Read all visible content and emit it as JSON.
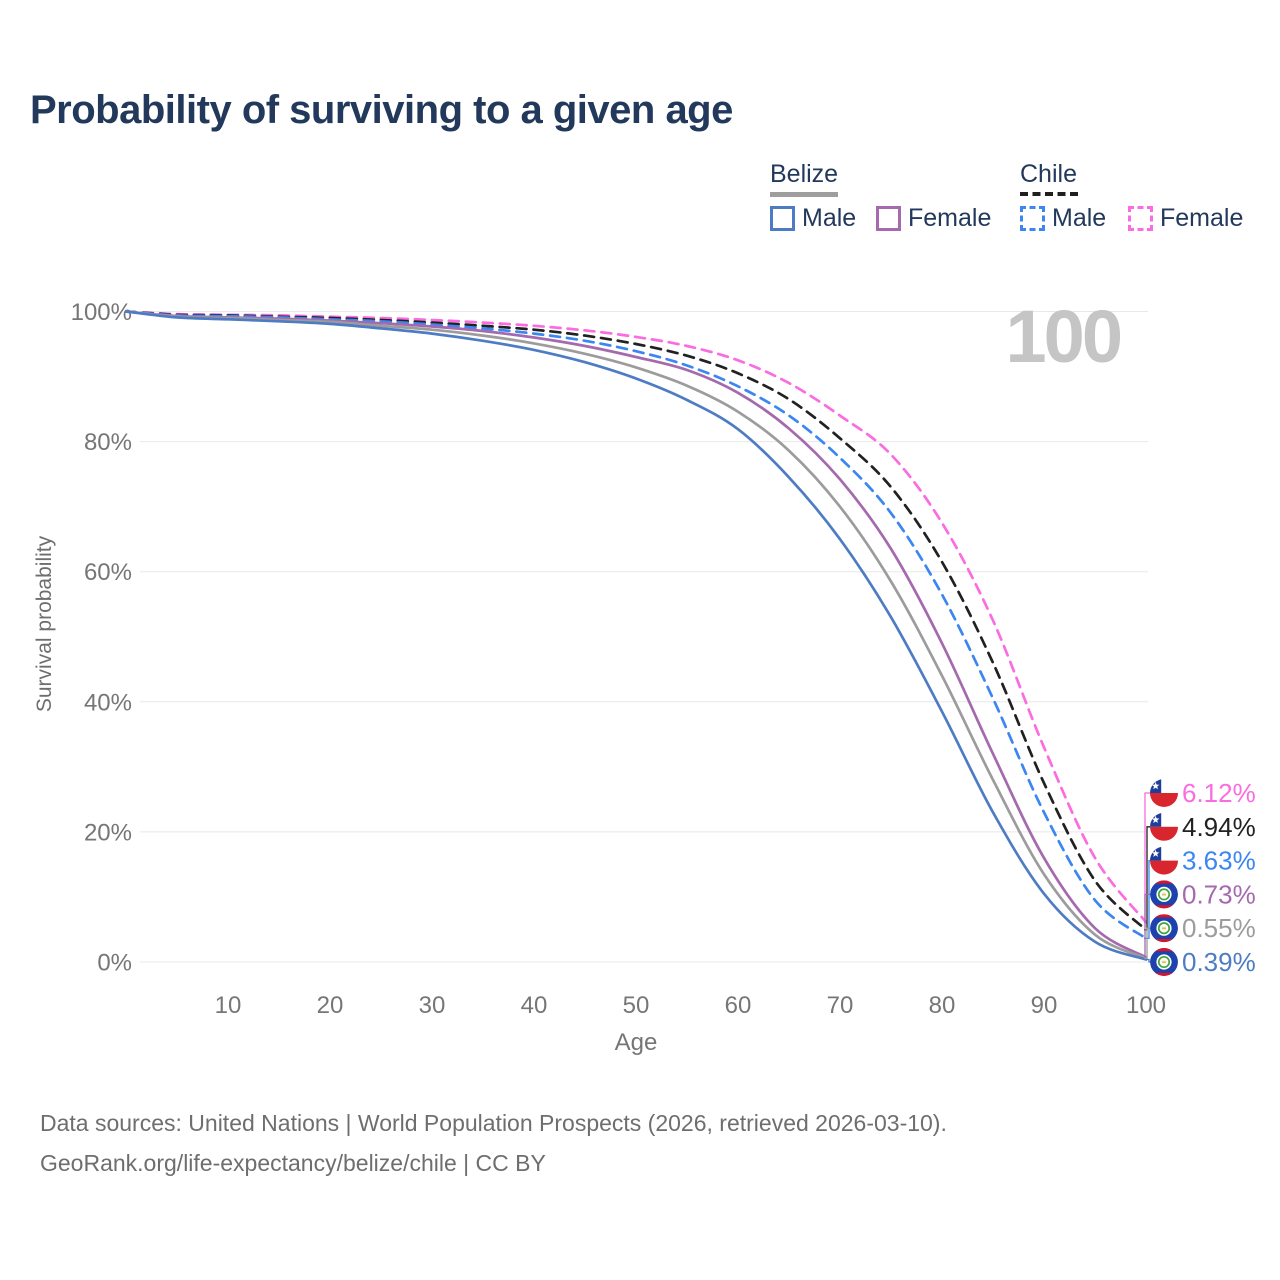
{
  "title": "Probability of surviving to a given age",
  "watermark": "100",
  "colors": {
    "title_text": "#22395c",
    "legend_text": "#22395c",
    "grid": "#e8e8e8",
    "tick_text": "#767676",
    "axis_title_text": "#6e6e6e",
    "watermark_text": "#c5c5c5",
    "footer_text": "#6e6e6e"
  },
  "legend": {
    "groups": [
      {
        "name": "Belize",
        "line_style": "solid",
        "line_color": "#9e9e9e",
        "items": [
          {
            "label": "Male",
            "color": "#4e7cc4",
            "dashed": false
          },
          {
            "label": "Female",
            "color": "#a569ae",
            "dashed": false
          }
        ]
      },
      {
        "name": "Chile",
        "line_style": "dashed",
        "line_color": "#1f1f1f",
        "items": [
          {
            "label": "Male",
            "color": "#3b86f0",
            "dashed": true
          },
          {
            "label": "Female",
            "color": "#fb6ce0",
            "dashed": true
          }
        ]
      }
    ]
  },
  "chart_data": {
    "type": "line",
    "title": "Probability of surviving to a given age",
    "xlabel": "Age",
    "ylabel": "Survival probability",
    "xlim": [
      0,
      100
    ],
    "ylim": [
      0,
      100
    ],
    "grid": "horizontal",
    "legend_position": "top-right",
    "highlight_age": 100,
    "x_ticks": [
      10,
      20,
      30,
      40,
      50,
      60,
      70,
      80,
      90,
      100
    ],
    "y_tick_labels": [
      "0%",
      "20%",
      "40%",
      "60%",
      "80%",
      "100%"
    ],
    "ages": [
      0,
      5,
      10,
      15,
      20,
      25,
      30,
      35,
      40,
      45,
      50,
      55,
      60,
      65,
      70,
      75,
      80,
      85,
      90,
      95,
      100
    ],
    "series": [
      {
        "name": "Chile Female",
        "country": "Chile",
        "sex": "Female",
        "style": "dashed",
        "color": "#fb6ce0",
        "end_label": "6.12%",
        "values": [
          100,
          99.6,
          99.5,
          99.4,
          99.2,
          99.0,
          98.7,
          98.3,
          97.8,
          97.1,
          96.1,
          94.7,
          92.5,
          89.0,
          84.0,
          78.0,
          67.5,
          52.5,
          33.0,
          16.0,
          6.12
        ]
      },
      {
        "name": "Chile Both sexes",
        "country": "Chile",
        "sex": "Both",
        "style": "dashed",
        "color": "#212121",
        "end_label": "4.94%",
        "values": [
          100,
          99.5,
          99.4,
          99.2,
          99.0,
          98.7,
          98.3,
          97.8,
          97.2,
          96.3,
          95.0,
          93.2,
          90.5,
          86.5,
          80.5,
          73.0,
          61.5,
          46.0,
          27.5,
          12.5,
          4.94
        ]
      },
      {
        "name": "Chile Male",
        "country": "Chile",
        "sex": "Male",
        "style": "dashed",
        "color": "#3b86f0",
        "end_label": "3.63%",
        "values": [
          100,
          99.4,
          99.3,
          99.1,
          98.8,
          98.5,
          98.0,
          97.4,
          96.6,
          95.5,
          93.9,
          91.7,
          88.5,
          84.0,
          77.5,
          69.0,
          56.5,
          40.5,
          23.0,
          9.5,
          3.63
        ]
      },
      {
        "name": "Belize Female",
        "country": "Belize",
        "sex": "Female",
        "style": "solid",
        "color": "#a569ae",
        "end_label": "0.73%",
        "values": [
          100,
          99.3,
          99.1,
          98.9,
          98.6,
          98.2,
          97.7,
          97.0,
          96.0,
          94.7,
          93.0,
          91.0,
          87.5,
          82.0,
          74.2,
          63.5,
          49.0,
          32.0,
          16.0,
          5.2,
          0.73
        ]
      },
      {
        "name": "Belize Both sexes",
        "country": "Belize",
        "sex": "Both",
        "style": "solid",
        "color": "#9c9c9c",
        "end_label": "0.55%",
        "values": [
          100,
          99.2,
          99.0,
          98.7,
          98.4,
          97.8,
          97.2,
          96.3,
          95.1,
          93.5,
          91.4,
          88.6,
          84.6,
          78.6,
          70.0,
          58.5,
          44.0,
          28.0,
          13.5,
          4.2,
          0.55
        ]
      },
      {
        "name": "Belize Male",
        "country": "Belize",
        "sex": "Male",
        "style": "solid",
        "color": "#4e7cc4",
        "end_label": "0.39%",
        "values": [
          100,
          99.1,
          98.8,
          98.5,
          98.1,
          97.4,
          96.6,
          95.5,
          94.1,
          92.2,
          89.7,
          86.4,
          81.9,
          74.5,
          65.0,
          53.0,
          38.5,
          23.0,
          10.5,
          3.1,
          0.39
        ]
      }
    ]
  },
  "footer": {
    "line1": "Data sources: United Nations | World Population Prospects (2026, retrieved 2026-03-10).",
    "line2": "GeoRank.org/life-expectancy/belize/chile | CC BY"
  }
}
